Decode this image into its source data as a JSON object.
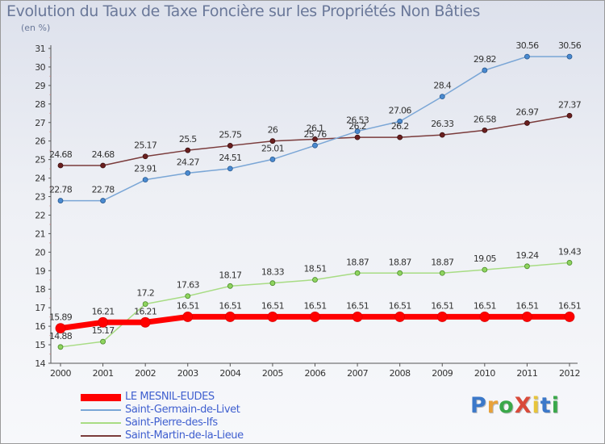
{
  "title": "Evolution du Taux de Taxe Foncière sur les Propriétés Non Bâties",
  "subtitle": "(en %)",
  "logo": {
    "text": "ProXiti",
    "colors": [
      "#3b78c9",
      "#e8a23a",
      "#3aa84a",
      "#d94a3a",
      "#e8c53a",
      "#3b78c9",
      "#3aa84a"
    ]
  },
  "chart_data": {
    "type": "line",
    "title": "Evolution du Taux de Taxe Foncière sur les Propriétés Non Bâties",
    "ylabel": "(en %)",
    "xlabel": "",
    "x": [
      "2000",
      "2001",
      "2002",
      "2003",
      "2004",
      "2005",
      "2006",
      "2007",
      "2008",
      "2009",
      "2010",
      "2011",
      "2012"
    ],
    "ylim": [
      14,
      31
    ],
    "yticks": [
      "14",
      "15",
      "16",
      "17",
      "18",
      "19",
      "20",
      "21",
      "22",
      "23",
      "24",
      "25",
      "26",
      "27",
      "28",
      "29",
      "30",
      "31"
    ],
    "grid": false,
    "legend_position": "bottom-left",
    "series": [
      {
        "name": "LE MESNIL-EUDES",
        "color": "#ff0000",
        "values": [
          15.89,
          16.21,
          16.21,
          16.51,
          16.51,
          16.51,
          16.51,
          16.51,
          16.51,
          16.51,
          16.51,
          16.51,
          16.51
        ],
        "labels": [
          "15.89",
          "16.21",
          "16.21",
          "16.51",
          "16.51",
          "16.51",
          "16.51",
          "16.51",
          "16.51",
          "16.51",
          "16.51",
          "16.51",
          "16.51"
        ]
      },
      {
        "name": "Saint-Germain-de-Livet",
        "color": "#7aa6d6",
        "values": [
          22.78,
          22.78,
          23.91,
          24.27,
          24.51,
          25.01,
          25.76,
          26.53,
          27.06,
          28.4,
          29.82,
          30.56,
          30.56
        ],
        "labels": [
          "22.78",
          "22.78",
          "23.91",
          "24.27",
          "24.51",
          "25.01",
          "25.76",
          "26.53",
          "27.06",
          "28.4",
          "29.82",
          "30.56",
          "30.56"
        ]
      },
      {
        "name": "Saint-Pierre-des-Ifs",
        "color": "#a8dc84",
        "values": [
          14.88,
          15.17,
          17.2,
          17.63,
          18.17,
          18.33,
          18.51,
          18.87,
          18.87,
          18.87,
          19.05,
          19.24,
          19.43
        ],
        "labels": [
          "14.88",
          "15.17",
          "17.2",
          "17.63",
          "18.17",
          "18.33",
          "18.51",
          "18.87",
          "18.87",
          "18.87",
          "19.05",
          "19.24",
          "19.43"
        ]
      },
      {
        "name": "Saint-Martin-de-la-Lieue",
        "color": "#7a3b3b",
        "values": [
          24.68,
          24.68,
          25.17,
          25.5,
          25.75,
          26,
          26.1,
          26.2,
          26.2,
          26.33,
          26.58,
          26.97,
          27.37
        ],
        "labels": [
          "24.68",
          "24.68",
          "25.17",
          "25.5",
          "25.75",
          "26",
          "26.1",
          "26.2",
          "26.2",
          "26.33",
          "26.58",
          "26.97",
          "27.37"
        ]
      }
    ]
  }
}
